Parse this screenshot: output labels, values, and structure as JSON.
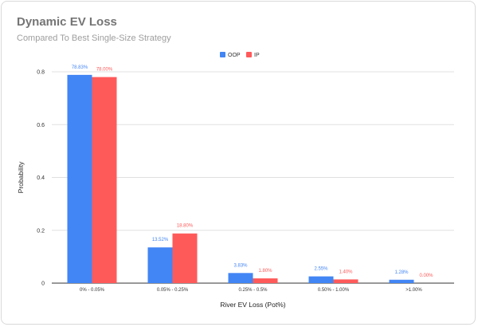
{
  "chart_data": {
    "type": "bar",
    "title": "Dynamic EV Loss",
    "subtitle": "Compared To Best Single-Size Strategy",
    "xlabel": "River EV Loss (Pot%)",
    "ylabel": "Probability",
    "ylim": [
      0,
      0.8
    ],
    "yticks": [
      0,
      0.2,
      0.4,
      0.6,
      0.8
    ],
    "ytick_labels": [
      "0",
      "0.2",
      "0.4",
      "0.6",
      "0.8"
    ],
    "grid": true,
    "legend_position": "top",
    "categories": [
      "0% - 0.05%",
      "0.05% - 0.25%",
      "0.25% - 0.5%",
      "0.50% - 1.00%",
      ">1.00%"
    ],
    "series": [
      {
        "name": "OOP",
        "color": "#4285f4",
        "values": [
          0.7883,
          0.1352,
          0.0383,
          0.0255,
          0.0128
        ],
        "labels": [
          "78.83%",
          "13.52%",
          "3.83%",
          "2.55%",
          "1.28%"
        ]
      },
      {
        "name": "IP",
        "color": "#ff5a5a",
        "values": [
          0.78,
          0.188,
          0.018,
          0.014,
          0.0
        ],
        "labels": [
          "78.00%",
          "18.80%",
          "1.80%",
          "1.40%",
          "0.00%"
        ]
      }
    ]
  }
}
